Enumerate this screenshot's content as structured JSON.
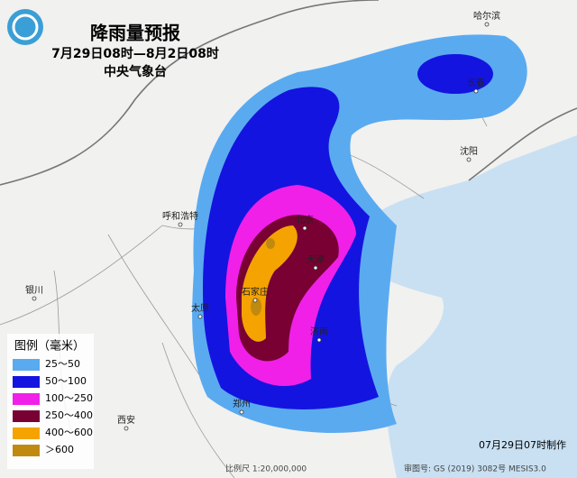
{
  "header": {
    "title": "降雨量预报",
    "period": "7月29日08时—8月2日08时",
    "issuer": "中央气象台"
  },
  "cities": [
    "哈尔滨",
    "长春",
    "沈阳",
    "呼和浩特",
    "北京",
    "天津",
    "石家庄",
    "太原",
    "银川",
    "济南",
    "郑州",
    "西安"
  ],
  "legend": {
    "title": "图例（毫米）",
    "items": [
      {
        "label": "25～50",
        "color": "#5aaaf0"
      },
      {
        "label": "50～100",
        "color": "#1414e0"
      },
      {
        "label": "100～250",
        "color": "#f020e8"
      },
      {
        "label": "250～400",
        "color": "#780032"
      },
      {
        "label": "400～600",
        "color": "#f5a300"
      },
      {
        "label": "＞600",
        "color": "#c08a10"
      }
    ]
  },
  "footer": {
    "made": "07月29日07时制作",
    "scale": "比例尺 1:20,000,000",
    "approval": "审图号: GS (2019) 3082号 MESIS3.0"
  }
}
